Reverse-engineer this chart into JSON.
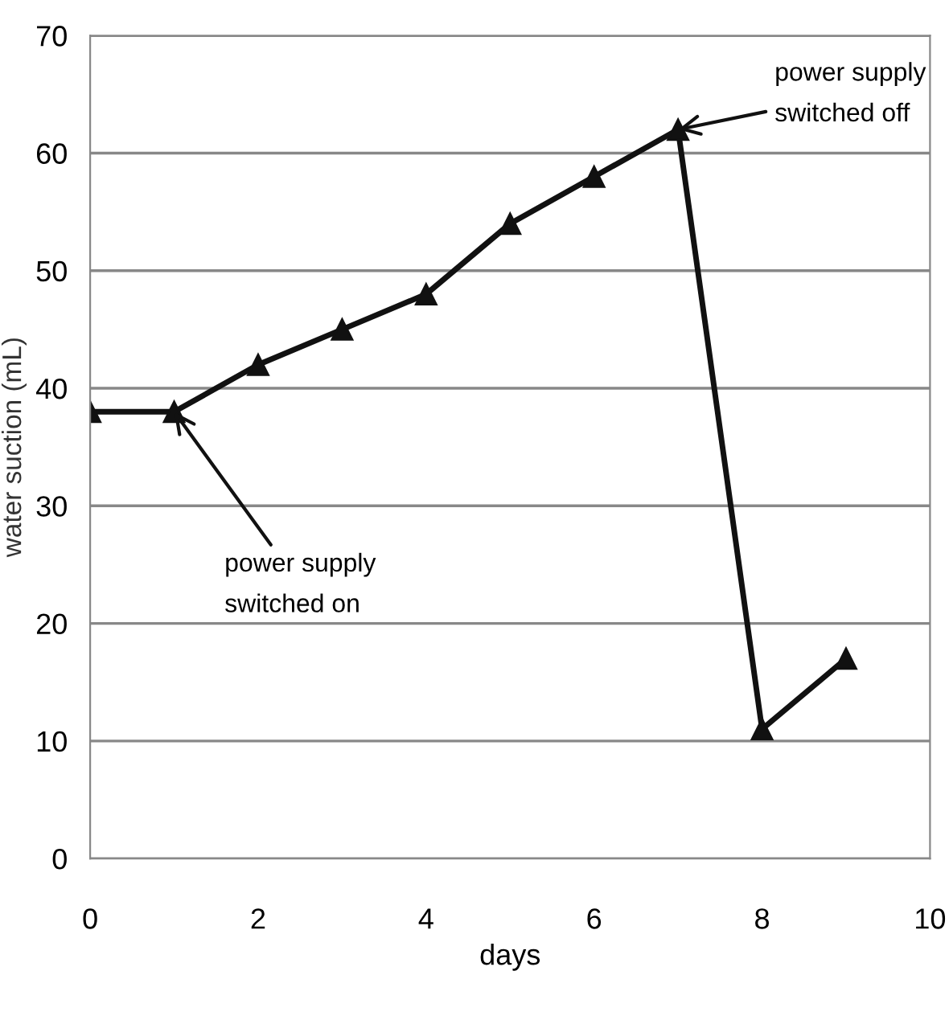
{
  "chart_data": {
    "type": "line",
    "xlabel": "days",
    "ylabel": "water suction (mL)",
    "x": [
      0,
      1,
      2,
      3,
      4,
      5,
      6,
      7,
      8,
      9
    ],
    "series": [
      {
        "color": "#111111",
        "values": [
          38,
          38,
          42,
          45,
          48,
          54,
          58,
          62,
          11,
          17
        ]
      }
    ],
    "xlim": [
      0,
      10
    ],
    "xticks": [
      0,
      2,
      4,
      6,
      8,
      10
    ],
    "ylim": [
      0,
      70
    ],
    "yticks": [
      0,
      10,
      20,
      30,
      40,
      50,
      60,
      70
    ],
    "grid": "y",
    "marker": "triangle",
    "line_style": "solid",
    "legend": false,
    "annotations": [
      {
        "text": "power supply\nswitched on",
        "x": 1,
        "y": 38
      },
      {
        "text": "power supply\nswitched off",
        "x": 7,
        "y": 62
      }
    ]
  }
}
